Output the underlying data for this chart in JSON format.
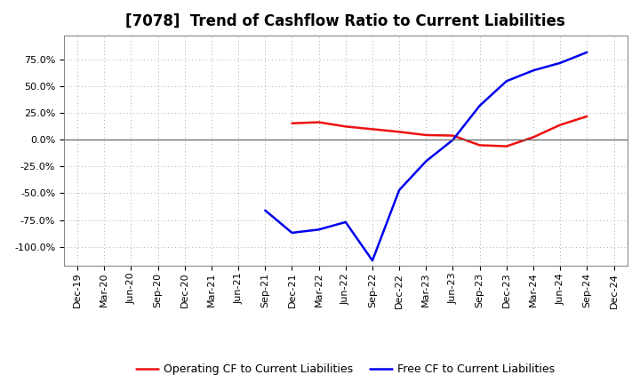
{
  "title": "[7078]  Trend of Cashflow Ratio to Current Liabilities",
  "x_labels": [
    "Dec-19",
    "Mar-20",
    "Jun-20",
    "Sep-20",
    "Dec-20",
    "Mar-21",
    "Jun-21",
    "Sep-21",
    "Dec-21",
    "Mar-22",
    "Jun-22",
    "Sep-22",
    "Dec-22",
    "Mar-23",
    "Jun-23",
    "Sep-23",
    "Dec-23",
    "Mar-24",
    "Jun-24",
    "Sep-24",
    "Dec-24"
  ],
  "operating_cf": [
    null,
    null,
    null,
    null,
    null,
    null,
    null,
    null,
    0.155,
    0.165,
    0.125,
    0.1,
    0.075,
    0.045,
    0.04,
    -0.05,
    -0.06,
    0.025,
    0.14,
    0.22,
    null
  ],
  "free_cf": [
    null,
    null,
    null,
    null,
    null,
    null,
    null,
    -0.66,
    -0.87,
    -0.84,
    -0.77,
    -1.13,
    -0.47,
    -0.2,
    0.0,
    0.32,
    0.55,
    0.65,
    0.72,
    0.82,
    null
  ],
  "ylim": [
    -1.18,
    0.98
  ],
  "yticks": [
    -1.0,
    -0.75,
    -0.5,
    -0.25,
    0.0,
    0.25,
    0.5,
    0.75
  ],
  "operating_color": "#ee1111",
  "free_color": "#0000ee",
  "background_color": "#ffffff",
  "grid_color": "#aaaaaa",
  "legend_op": "Operating CF to Current Liabilities",
  "legend_free": "Free CF to Current Liabilities",
  "title_fontsize": 12,
  "tick_fontsize": 8,
  "legend_fontsize": 9
}
